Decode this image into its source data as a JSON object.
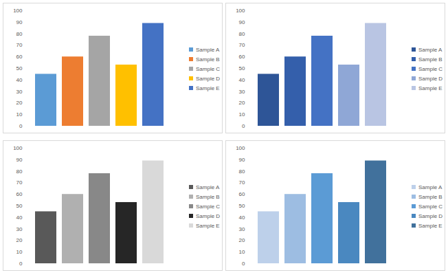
{
  "chart_data": [
    {
      "type": "bar",
      "categories": [
        "Sample A",
        "Sample B",
        "Sample C",
        "Sample D",
        "Sample E"
      ],
      "values": [
        45,
        60,
        78,
        53,
        89
      ],
      "colors": [
        "#5b9bd5",
        "#ed7d31",
        "#a5a5a5",
        "#ffc000",
        "#4472c4"
      ],
      "ylim": [
        0,
        100
      ],
      "yticks": [
        0,
        10,
        20,
        30,
        40,
        50,
        60,
        70,
        80,
        90,
        100
      ],
      "grid": false,
      "legend": "right",
      "tick_labels": "y"
    },
    {
      "type": "bar",
      "categories": [
        "Sample A",
        "Sample B",
        "Sample C",
        "Sample D",
        "Sample E"
      ],
      "values": [
        45,
        60,
        78,
        53,
        89
      ],
      "colors": [
        "#2e5597",
        "#345fab",
        "#4472c4",
        "#8fa7d6",
        "#b9c5e3"
      ],
      "ylim": [
        0,
        100
      ],
      "yticks": [
        0,
        10,
        20,
        30,
        40,
        50,
        60,
        70,
        80,
        90,
        100
      ],
      "grid": false,
      "legend": "right",
      "tick_labels": "y"
    },
    {
      "type": "bar",
      "categories": [
        "Sample A",
        "Sample B",
        "Sample C",
        "Sample D",
        "Sample E"
      ],
      "values": [
        45,
        60,
        78,
        53,
        89
      ],
      "colors": [
        "#595959",
        "#b0b0b0",
        "#888888",
        "#262626",
        "#d9d9d9"
      ],
      "ylim": [
        0,
        100
      ],
      "yticks": [
        0,
        10,
        20,
        30,
        40,
        50,
        60,
        70,
        80,
        90,
        100
      ],
      "grid": false,
      "legend": "right",
      "tick_labels": "y"
    },
    {
      "type": "bar",
      "categories": [
        "Sample A",
        "Sample B",
        "Sample C",
        "Sample D",
        "Sample E"
      ],
      "values": [
        45,
        60,
        78,
        53,
        89
      ],
      "colors": [
        "#bdd0ea",
        "#9dbde2",
        "#5b9bd5",
        "#4a88c0",
        "#41719c"
      ],
      "ylim": [
        0,
        100
      ],
      "yticks": [
        0,
        10,
        20,
        30,
        40,
        50,
        60,
        70,
        80,
        90,
        100
      ],
      "grid": false,
      "legend": "right",
      "tick_labels": "y"
    }
  ]
}
